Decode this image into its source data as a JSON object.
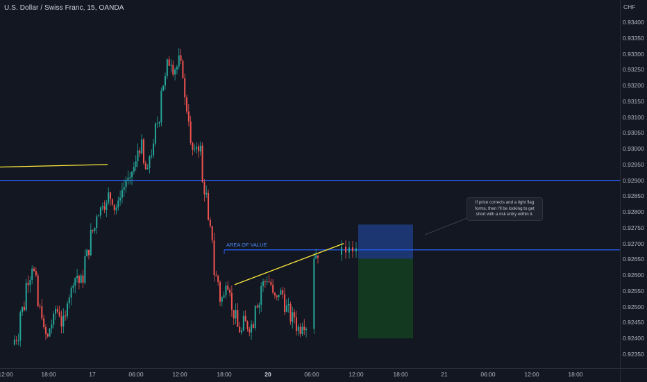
{
  "chart": {
    "symbol_title": "U.S. Dollar / Swiss Franc, 15, OANDA",
    "currency": "CHF",
    "price_ticks": [
      "0.93400",
      "0.93350",
      "0.93300",
      "0.93250",
      "0.93200",
      "0.93150",
      "0.93100",
      "0.93050",
      "0.93000",
      "0.92950",
      "0.92900",
      "0.92850",
      "0.92800",
      "0.92750",
      "0.92700",
      "0.92650",
      "0.92600",
      "0.92550",
      "0.92500",
      "0.92450",
      "0.92400",
      "0.92350"
    ],
    "time_ticks": [
      {
        "label": "12:00",
        "bold": false
      },
      {
        "label": "18:00",
        "bold": false
      },
      {
        "label": "17",
        "bold": false
      },
      {
        "label": "06:00",
        "bold": false
      },
      {
        "label": "12:00",
        "bold": false
      },
      {
        "label": "18:00",
        "bold": false
      },
      {
        "label": "20",
        "bold": true
      },
      {
        "label": "06:00",
        "bold": false
      },
      {
        "label": "12:00",
        "bold": false
      },
      {
        "label": "18:00",
        "bold": false
      },
      {
        "label": "21",
        "bold": false
      },
      {
        "label": "06:00",
        "bold": false
      },
      {
        "label": "12:00",
        "bold": false
      },
      {
        "label": "18:00",
        "bold": false
      }
    ],
    "area_of_value_label": "AREA OF VALUE",
    "callout_text": "If price corrects and a tight flag forms, then I'll be looking to get short with a risk entry within it.",
    "colors": {
      "background": "#131722",
      "up_candle": "#26a69a",
      "down_candle": "#ef5350",
      "horizontal_line": "#2962ff",
      "trend_line": "#ffeb3b",
      "stop_zone": "#1e3a7a",
      "target_zone": "#143d20"
    }
  },
  "chart_data": {
    "type": "candlestick",
    "title": "U.S. Dollar / Swiss Franc, 15, OANDA",
    "ylabel": "CHF",
    "ylim": [
      0.9233,
      0.9343
    ],
    "horizontal_levels": [
      0.929,
      0.9268
    ],
    "path_points": [
      [
        0.9238,
        0.9239
      ],
      [
        0.9241,
        0.9248
      ],
      [
        0.925,
        0.9256
      ],
      [
        0.926,
        0.9266
      ],
      [
        0.9258,
        0.9251
      ],
      [
        0.9248,
        0.9243
      ],
      [
        0.924,
        0.9242
      ],
      [
        0.9246,
        0.925
      ],
      [
        0.9248,
        0.9244
      ],
      [
        0.9246,
        0.9252
      ],
      [
        0.9255,
        0.9258
      ],
      [
        0.926,
        0.9257
      ],
      [
        0.9259,
        0.9264
      ],
      [
        0.9268,
        0.9272
      ],
      [
        0.9275,
        0.9279
      ],
      [
        0.9281,
        0.9284
      ],
      [
        0.9282,
        0.9286
      ],
      [
        0.9284,
        0.9281
      ],
      [
        0.9282,
        0.9285
      ],
      [
        0.9288,
        0.9291
      ],
      [
        0.9289,
        0.9292
      ],
      [
        0.9295,
        0.9299
      ],
      [
        0.9301,
        0.9296
      ],
      [
        0.9292,
        0.9297
      ],
      [
        0.93,
        0.9305
      ],
      [
        0.931,
        0.9318
      ],
      [
        0.9322,
        0.9326
      ],
      [
        0.9328,
        0.9325
      ],
      [
        0.9326,
        0.933
      ],
      [
        0.9324,
        0.9318
      ],
      [
        0.931,
        0.9302
      ],
      [
        0.9298,
        0.9302
      ],
      [
        0.93,
        0.9291
      ],
      [
        0.9285,
        0.9278
      ],
      [
        0.9272,
        0.9262
      ],
      [
        0.9258,
        0.9252
      ],
      [
        0.9253,
        0.926
      ],
      [
        0.9256,
        0.9249
      ],
      [
        0.9247,
        0.9244
      ],
      [
        0.9242,
        0.9246
      ],
      [
        0.9244,
        0.9243
      ],
      [
        0.9245,
        0.9252
      ],
      [
        0.9251,
        0.9256
      ],
      [
        0.9258,
        0.926
      ],
      [
        0.9257,
        0.9254
      ],
      [
        0.9252,
        0.9255
      ],
      [
        0.9254,
        0.9251
      ],
      [
        0.9249,
        0.9246
      ],
      [
        0.9247,
        0.9244
      ],
      [
        0.9243,
        0.9246
      ],
      [
        0.9244,
        0.9247
      ],
      [
        0.9268,
        0.9266
      ],
      [
        0.9267,
        0.9269
      ]
    ],
    "xlabel": "",
    "x_ticks": [
      "12:00",
      "18:00",
      "17",
      "06:00",
      "12:00",
      "18:00",
      "20",
      "06:00",
      "12:00",
      "18:00",
      "21",
      "06:00",
      "12:00",
      "18:00"
    ]
  }
}
